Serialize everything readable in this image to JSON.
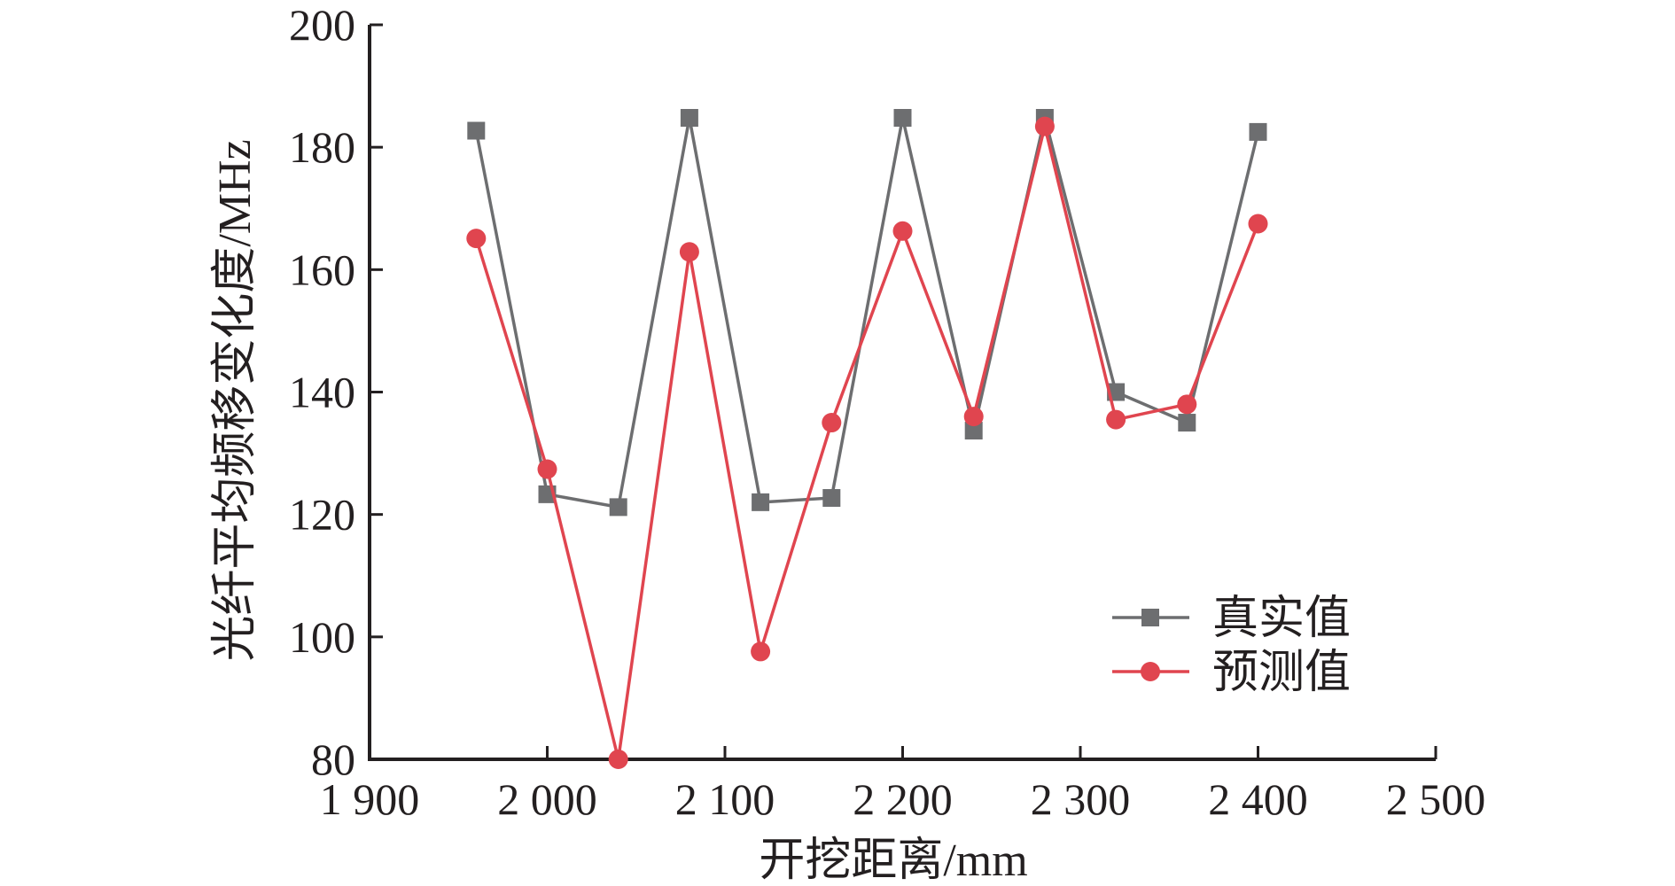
{
  "colors": {
    "real": "#6d6e70",
    "pred": "#e0454f",
    "axis": "#231f20"
  },
  "chart_data": {
    "type": "line",
    "xlabel": "开挖距离/mm",
    "ylabel": "光纤平均频移变化度/MHz",
    "xlim": [
      1900,
      2500
    ],
    "ylim": [
      80,
      200
    ],
    "xticks": [
      1900,
      2000,
      2100,
      2200,
      2300,
      2400,
      2500
    ],
    "xtick_labels": [
      "1 900",
      "2 000",
      "2 100",
      "2 200",
      "2 300",
      "2 400",
      "2 500"
    ],
    "yticks": [
      80,
      100,
      120,
      140,
      160,
      180,
      200
    ],
    "ytick_labels": [
      "80",
      "100",
      "120",
      "140",
      "160",
      "180",
      "200"
    ],
    "grid": false,
    "legend_position": "lower-right",
    "x": [
      1960,
      2000,
      2040,
      2080,
      2120,
      2160,
      2200,
      2240,
      2280,
      2320,
      2360,
      2400
    ],
    "series": [
      {
        "name": "真实值",
        "marker": "square",
        "color": "#6d6e70",
        "values": [
          182.7,
          123.3,
          121.2,
          184.8,
          122.0,
          122.7,
          184.8,
          133.7,
          184.8,
          140.0,
          135.0,
          182.5
        ]
      },
      {
        "name": "预测值",
        "marker": "circle",
        "color": "#e0454f",
        "values": [
          165.1,
          127.4,
          80.0,
          162.9,
          97.6,
          135.0,
          166.3,
          136.0,
          183.4,
          135.5,
          138.0,
          167.5
        ]
      }
    ]
  }
}
